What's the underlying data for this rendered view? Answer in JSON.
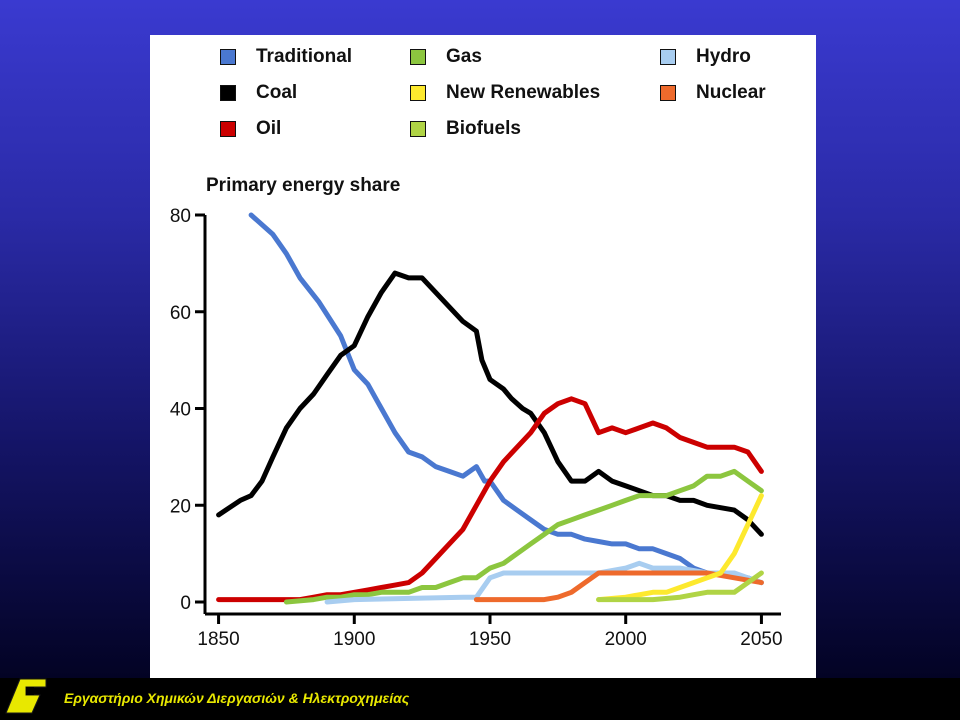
{
  "footer": {
    "lab_name": "Εργαστήριο Χημικών Διεργασιών & Ηλεκτροχημείας"
  },
  "colors": {
    "background_top": "#3a3ad0",
    "background_bottom": "#000018",
    "panel": "#ffffff",
    "footer_text": "#e8e800",
    "logo": "#e8e800"
  },
  "chart_data": {
    "type": "line",
    "title": "Primary energy share",
    "xlabel": "",
    "ylabel": "",
    "xlim": [
      1845,
      2055
    ],
    "ylim": [
      0,
      80
    ],
    "x_ticks": [
      "1850",
      "1900",
      "1950",
      "2000",
      "2050"
    ],
    "y_ticks": [
      "0",
      "20",
      "40",
      "60",
      "80"
    ],
    "legend_position": "top",
    "grid": false,
    "legend": [
      {
        "name": "Traditional",
        "color": "#4a78d0"
      },
      {
        "name": "Gas",
        "color": "#8cc63f"
      },
      {
        "name": "Hydro",
        "color": "#a8cdf0"
      },
      {
        "name": "Coal",
        "color": "#000000"
      },
      {
        "name": "New Renewables",
        "color": "#fde92e"
      },
      {
        "name": "Nuclear",
        "color": "#ee6a2c"
      },
      {
        "name": "Oil",
        "color": "#cc0000"
      },
      {
        "name": "Biofuels",
        "color": "#b0d445"
      }
    ],
    "series": [
      {
        "name": "Traditional",
        "color": "#4a78d0",
        "x": [
          1862,
          1870,
          1875,
          1880,
          1887,
          1895,
          1900,
          1905,
          1910,
          1915,
          1920,
          1925,
          1930,
          1935,
          1940,
          1945,
          1948,
          1950,
          1955,
          1960,
          1965,
          1970,
          1975,
          1980,
          1985,
          1990,
          1995,
          2000,
          2005,
          2010,
          2015,
          2020,
          2025,
          2030,
          2040,
          2045,
          2050
        ],
        "y": [
          80,
          76,
          72,
          67,
          62,
          55,
          48,
          45,
          40,
          35,
          31,
          30,
          28,
          27,
          26,
          28,
          25,
          25,
          21,
          19,
          17,
          15,
          14,
          14,
          13,
          12.5,
          12,
          12,
          11,
          11,
          10,
          9,
          7,
          6,
          5.5,
          5,
          4
        ]
      },
      {
        "name": "Coal",
        "color": "#000000",
        "x": [
          1850,
          1858,
          1862,
          1866,
          1870,
          1875,
          1880,
          1885,
          1890,
          1895,
          1900,
          1905,
          1910,
          1915,
          1920,
          1925,
          1930,
          1935,
          1940,
          1945,
          1947,
          1950,
          1955,
          1958,
          1962,
          1965,
          1970,
          1975,
          1980,
          1985,
          1990,
          1995,
          2000,
          2005,
          2010,
          2015,
          2020,
          2025,
          2030,
          2040,
          2045,
          2050
        ],
        "y": [
          18,
          21,
          22,
          25,
          30,
          36,
          40,
          43,
          47,
          51,
          53,
          59,
          64,
          68,
          67,
          67,
          64,
          61,
          58,
          56,
          50,
          46,
          44,
          42,
          40,
          39,
          35,
          29,
          25,
          25,
          27,
          25,
          24,
          23,
          22,
          22,
          21,
          21,
          20,
          19,
          17,
          14
        ]
      },
      {
        "name": "Oil",
        "color": "#cc0000",
        "x": [
          1850,
          1880,
          1885,
          1890,
          1895,
          1900,
          1905,
          1910,
          1915,
          1920,
          1925,
          1930,
          1935,
          1940,
          1945,
          1950,
          1955,
          1960,
          1965,
          1970,
          1975,
          1980,
          1985,
          1990,
          1995,
          2000,
          2005,
          2010,
          2015,
          2020,
          2025,
          2030,
          2040,
          2045,
          2050
        ],
        "y": [
          0.5,
          0.5,
          1,
          1.5,
          1.5,
          2,
          2.5,
          3,
          3.5,
          4,
          6,
          9,
          12,
          15,
          20,
          25,
          29,
          32,
          35,
          39,
          41,
          42,
          41,
          35,
          36,
          35,
          36,
          37,
          36,
          34,
          33,
          32,
          32,
          31,
          27
        ]
      },
      {
        "name": "Gas",
        "color": "#8cc63f",
        "x": [
          1875,
          1885,
          1890,
          1895,
          1900,
          1905,
          1910,
          1915,
          1920,
          1925,
          1930,
          1935,
          1940,
          1945,
          1950,
          1955,
          1960,
          1965,
          1970,
          1975,
          1980,
          1985,
          1990,
          1995,
          2000,
          2005,
          2010,
          2015,
          2020,
          2025,
          2030,
          2035,
          2040,
          2045,
          2050
        ],
        "y": [
          0,
          0.5,
          1,
          1,
          1.5,
          1.5,
          2,
          2,
          2,
          3,
          3,
          4,
          5,
          5,
          7,
          8,
          10,
          12,
          14,
          16,
          17,
          18,
          19,
          20,
          21,
          22,
          22,
          22,
          23,
          24,
          26,
          26,
          27,
          25,
          23
        ]
      },
      {
        "name": "Hydro",
        "color": "#a8cdf0",
        "x": [
          1890,
          1900,
          1940,
          1945,
          1950,
          1955,
          1970,
          1975,
          1980,
          1990,
          2000,
          2005,
          2010,
          2015,
          2020,
          2030,
          2040,
          2045,
          2050
        ],
        "y": [
          0,
          0.5,
          1,
          1,
          5,
          6,
          6,
          6,
          6,
          6,
          7,
          8,
          7,
          7,
          7,
          6,
          6,
          5,
          4
        ]
      },
      {
        "name": "Nuclear",
        "color": "#ee6a2c",
        "x": [
          1945,
          1965,
          1970,
          1975,
          1980,
          1985,
          1990,
          1995,
          2000,
          2010,
          2020,
          2030,
          2040,
          2050
        ],
        "y": [
          0.5,
          0.5,
          0.5,
          1,
          2,
          4,
          6,
          6,
          6,
          6,
          6,
          6,
          5,
          4
        ]
      },
      {
        "name": "New Renewables",
        "color": "#fde92e",
        "x": [
          1990,
          2000,
          2010,
          2015,
          2020,
          2025,
          2030,
          2035,
          2040,
          2045,
          2050
        ],
        "y": [
          0.5,
          1,
          2,
          2,
          3,
          4,
          5,
          6,
          10,
          16,
          22
        ]
      },
      {
        "name": "Biofuels",
        "color": "#b0d445",
        "x": [
          1990,
          2000,
          2010,
          2020,
          2025,
          2030,
          2040,
          2045,
          2050
        ],
        "y": [
          0.5,
          0.5,
          0.5,
          1,
          1.5,
          2,
          2,
          4,
          6
        ]
      }
    ]
  }
}
